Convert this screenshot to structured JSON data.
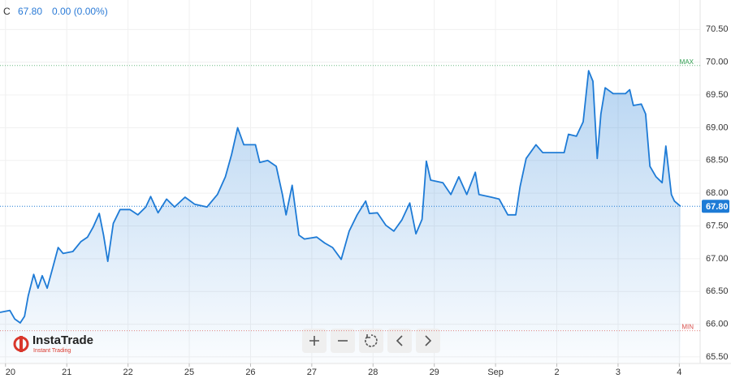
{
  "chart_data": {
    "type": "area",
    "header": {
      "symbol": "C",
      "price": "67.80",
      "change": "0.00 (0.00%)"
    },
    "logo": {
      "name": "InstaTrade",
      "tagline": "Instant Trading"
    },
    "color": "#1e7bd6",
    "grid": true,
    "xlim": [
      -0.09,
      11.34
    ],
    "ylim": [
      65.4,
      70.95
    ],
    "xticks": [
      {
        "value": 0,
        "label": "20"
      },
      {
        "value": 1,
        "label": "21"
      },
      {
        "value": 2,
        "label": "22"
      },
      {
        "value": 3,
        "label": "25"
      },
      {
        "value": 4,
        "label": "26"
      },
      {
        "value": 5,
        "label": "27"
      },
      {
        "value": 6,
        "label": "28"
      },
      {
        "value": 7,
        "label": "29"
      },
      {
        "value": 8,
        "label": "Sep"
      },
      {
        "value": 9,
        "label": "2"
      },
      {
        "value": 10,
        "label": "3"
      },
      {
        "value": 11,
        "label": "4"
      }
    ],
    "yticks": [
      {
        "value": 65.5,
        "label": "65.50"
      },
      {
        "value": 66,
        "label": "66.00"
      },
      {
        "value": 66.5,
        "label": "66.50"
      },
      {
        "value": 67,
        "label": "67.00"
      },
      {
        "value": 67.5,
        "label": "67.50"
      },
      {
        "value": 68,
        "label": "68.00"
      },
      {
        "value": 68.5,
        "label": "68.50"
      },
      {
        "value": 69,
        "label": "69.00"
      },
      {
        "value": 69.5,
        "label": "69.50"
      },
      {
        "value": 70,
        "label": "70.00"
      },
      {
        "value": 70.5,
        "label": "70.50"
      }
    ],
    "last_price": {
      "value": 67.8,
      "label": "67.80"
    },
    "max_line": {
      "value": 69.95,
      "label": "MAX",
      "color": "#2e9e4f"
    },
    "min_line": {
      "value": 65.9,
      "label": "MIN",
      "color": "#d9534f"
    },
    "x": [
      -0.09,
      0.07,
      0.15,
      0.24,
      0.31,
      0.37,
      0.46,
      0.53,
      0.6,
      0.68,
      0.77,
      0.86,
      0.94,
      1.1,
      1.23,
      1.34,
      1.43,
      1.53,
      1.6,
      1.67,
      1.76,
      1.87,
      2.03,
      2.16,
      2.29,
      2.37,
      2.49,
      2.63,
      2.76,
      2.93,
      3.09,
      3.29,
      3.46,
      3.59,
      3.69,
      3.79,
      3.89,
      4.08,
      4.15,
      4.28,
      4.42,
      4.52,
      4.58,
      4.68,
      4.79,
      4.88,
      5.08,
      5.21,
      5.34,
      5.48,
      5.61,
      5.74,
      5.88,
      5.94,
      6.07,
      6.21,
      6.34,
      6.47,
      6.6,
      6.7,
      6.8,
      6.87,
      6.94,
      7.14,
      7.27,
      7.4,
      7.53,
      7.67,
      7.73,
      7.93,
      8.06,
      8.2,
      8.33,
      8.4,
      8.5,
      8.66,
      8.77,
      9.12,
      9.19,
      9.32,
      9.43,
      9.52,
      9.59,
      9.66,
      9.72,
      9.79,
      9.92,
      10.12,
      10.19,
      10.25,
      10.38,
      10.45,
      10.52,
      10.62,
      10.72,
      10.78,
      10.87,
      10.92,
      11.02
    ],
    "values": [
      66.18,
      66.21,
      66.08,
      66.02,
      66.12,
      66.43,
      66.76,
      66.55,
      66.74,
      66.55,
      66.86,
      67.17,
      67.08,
      67.11,
      67.26,
      67.33,
      67.48,
      67.69,
      67.36,
      66.96,
      67.54,
      67.75,
      67.75,
      67.67,
      67.79,
      67.95,
      67.7,
      67.91,
      67.79,
      67.94,
      67.83,
      67.79,
      67.98,
      68.25,
      68.59,
      69.0,
      68.74,
      68.74,
      68.47,
      68.5,
      68.41,
      67.98,
      67.67,
      68.12,
      67.36,
      67.3,
      67.33,
      67.24,
      67.17,
      66.99,
      67.42,
      67.67,
      67.88,
      67.69,
      67.7,
      67.51,
      67.42,
      67.59,
      67.85,
      67.38,
      67.6,
      68.49,
      68.2,
      68.16,
      67.98,
      68.25,
      67.98,
      68.32,
      67.98,
      67.94,
      67.91,
      67.67,
      67.67,
      68.1,
      68.53,
      68.74,
      68.62,
      68.62,
      68.9,
      68.87,
      69.09,
      69.87,
      69.71,
      68.53,
      69.21,
      69.61,
      69.52,
      69.52,
      69.58,
      69.34,
      69.36,
      69.21,
      68.41,
      68.25,
      68.16,
      68.72,
      67.98,
      67.88,
      67.8
    ]
  }
}
